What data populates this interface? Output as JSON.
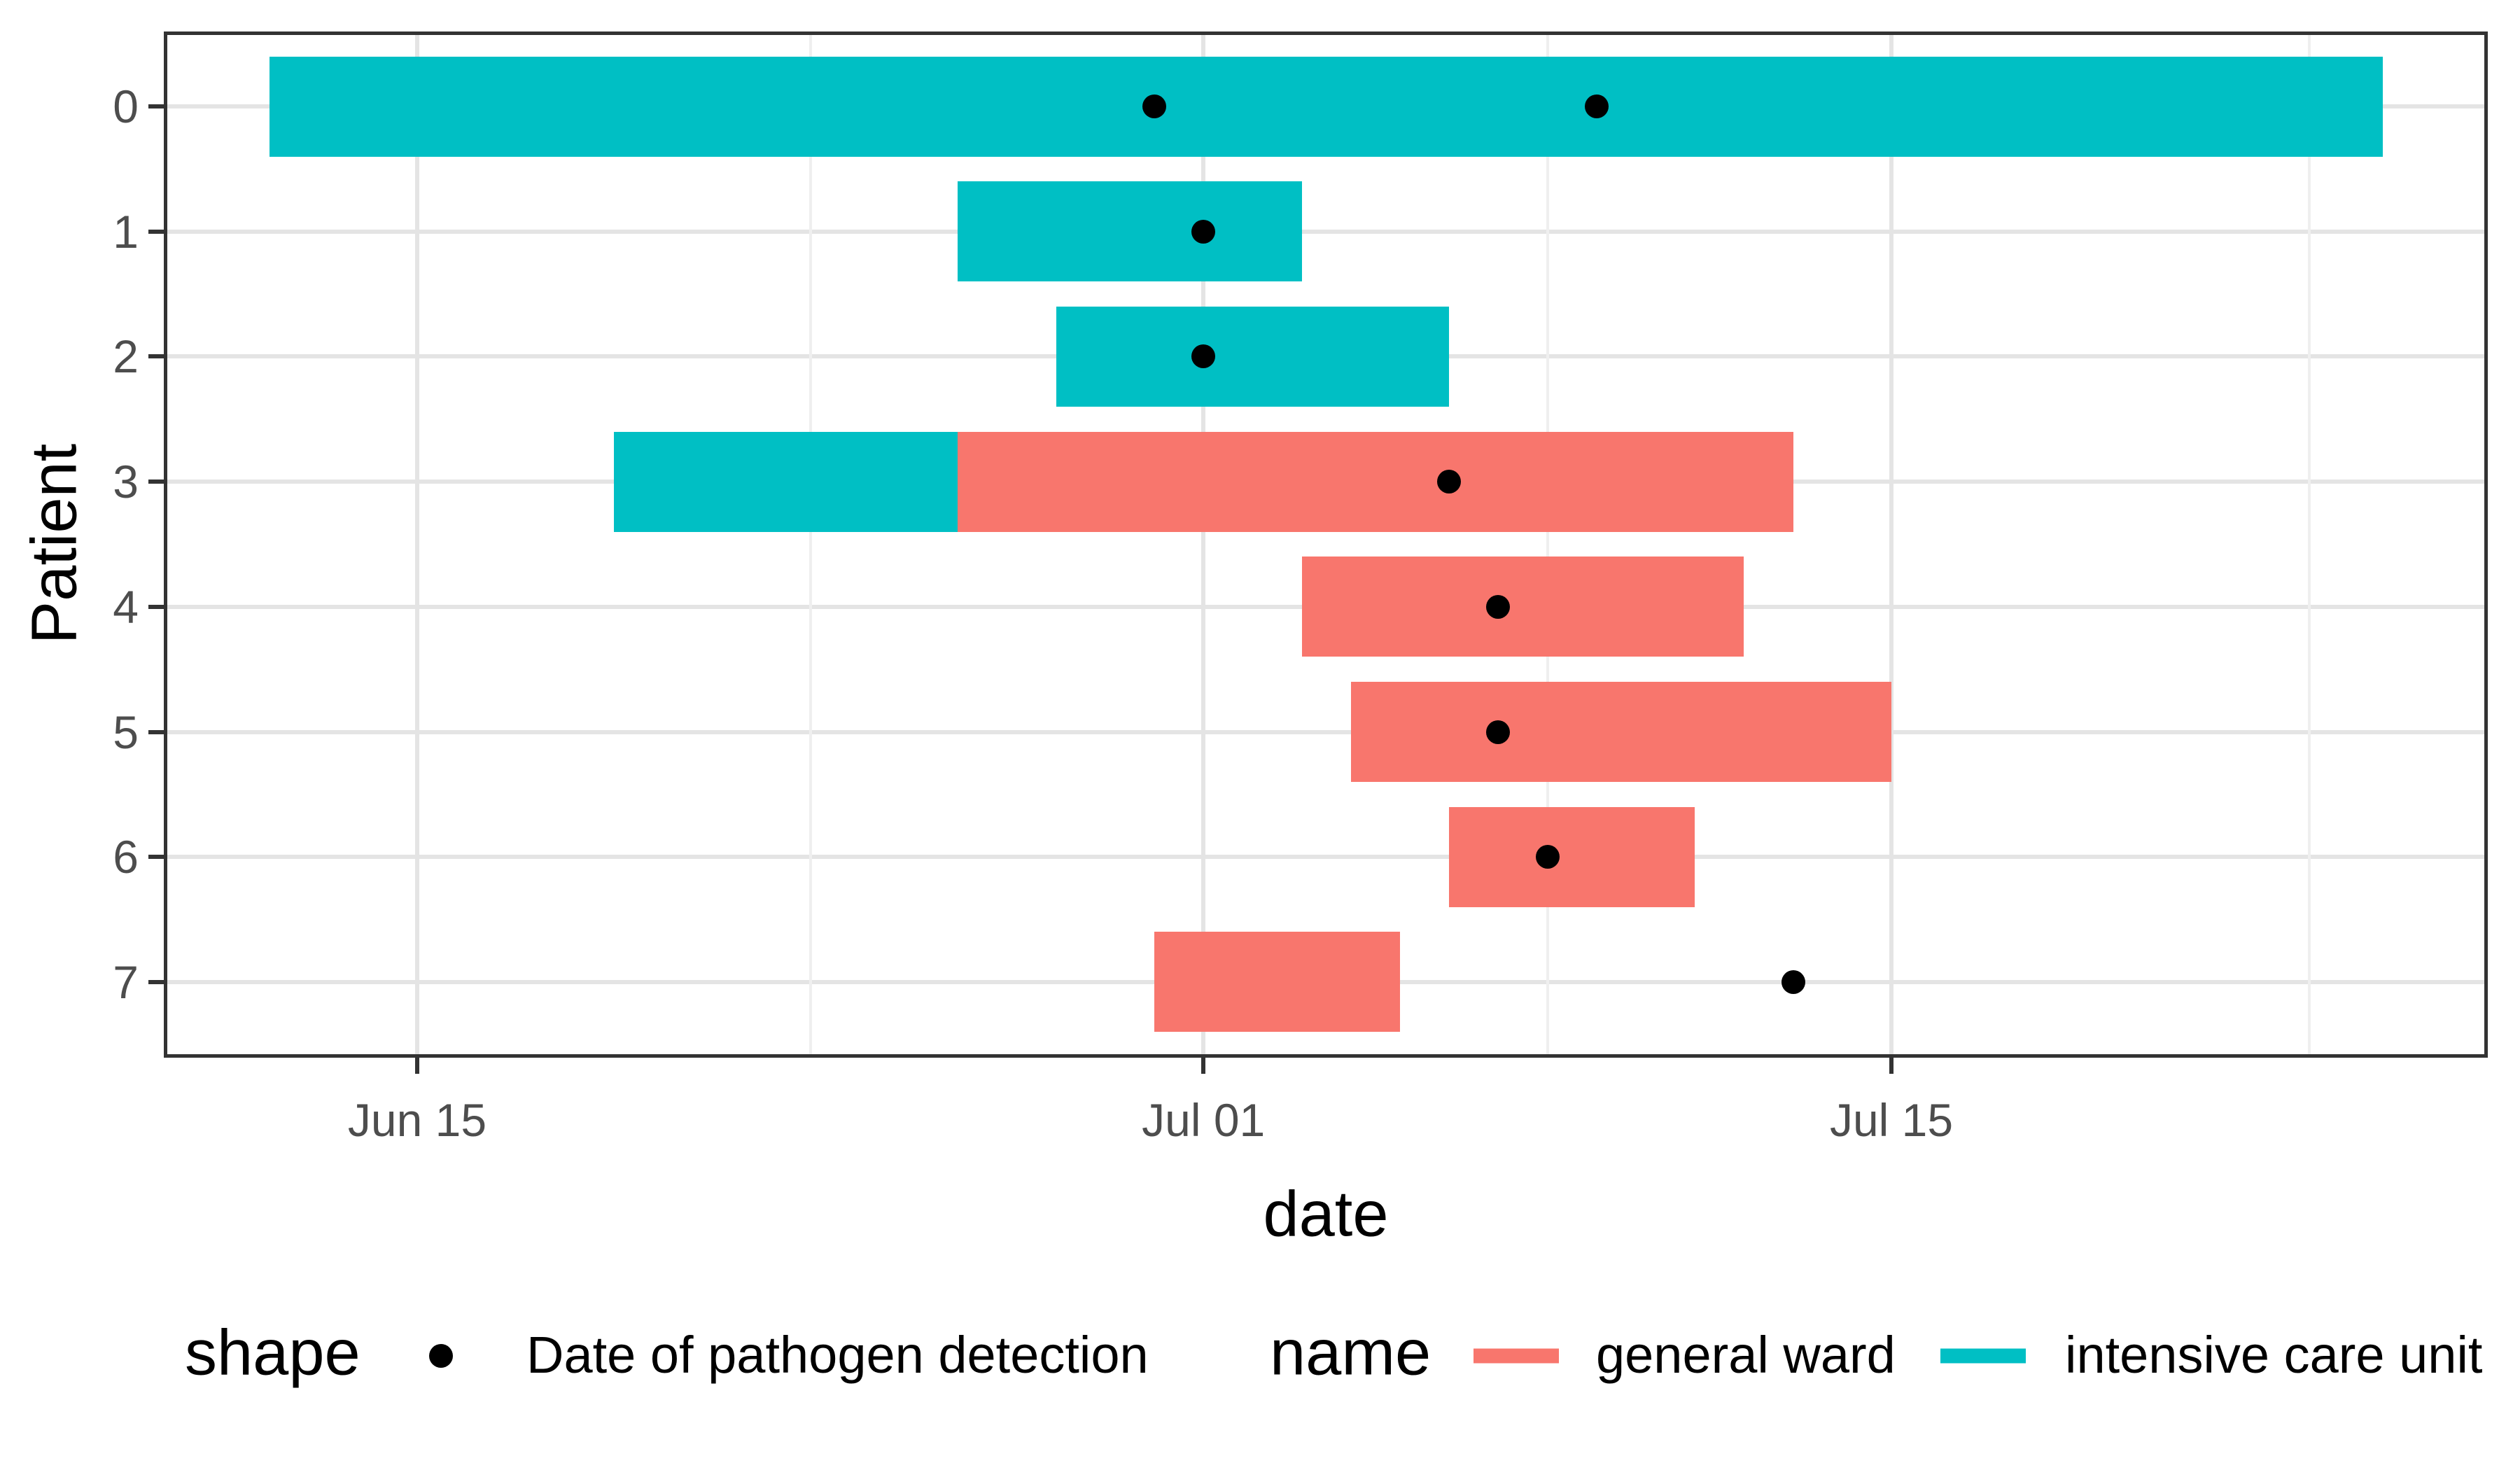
{
  "figure": {
    "x_axis": {
      "title": "date",
      "major_ticks": [
        {
          "label": "Jun 15",
          "day": 15
        },
        {
          "label": "Jul 01",
          "day": 31
        },
        {
          "label": "Jul 15",
          "day": 45
        }
      ],
      "minor_tick_days": [
        23,
        38,
        53.5
      ]
    },
    "y_axis": {
      "title": "Patient",
      "tick_labels": [
        "0",
        "1",
        "2",
        "3",
        "4",
        "5",
        "6",
        "7"
      ]
    },
    "legend": {
      "shape": {
        "title": "shape",
        "items": [
          {
            "label": "Date of pathogen detection",
            "marker": "point",
            "color": "#000000"
          }
        ]
      },
      "name": {
        "title": "name",
        "items": [
          {
            "label": "general ward",
            "color": "#F8766D"
          },
          {
            "label": "intensive care unit",
            "color": "#00BFC4"
          }
        ]
      }
    },
    "colors": {
      "general_ward": "#F8766D",
      "intensive_care_unit": "#00BFC4",
      "grid_major": "#e4e4e4",
      "grid_minor": "#efefef",
      "panel_border": "#333333",
      "tick_label": "#4d4d4d",
      "detection_marker": "#000000"
    }
  },
  "chart_data": {
    "type": "gantt",
    "xlabel": "date",
    "ylabel": "Patient",
    "x_tick_labels": [
      "Jun 15",
      "Jul 01",
      "Jul 15"
    ],
    "x_range_days_note": "x axis spans approx Jun 10 to Jul 27",
    "series_names": [
      "general ward",
      "intensive care unit"
    ],
    "patients": [
      {
        "patient": "0",
        "stays": [
          {
            "name": "intensive care unit",
            "start": "Jun 12",
            "end": "Jul 25"
          }
        ],
        "detections": [
          "Jun 30",
          "Jul 09"
        ]
      },
      {
        "patient": "1",
        "stays": [
          {
            "name": "intensive care unit",
            "start": "Jun 26",
            "end": "Jul 03"
          }
        ],
        "detections": [
          "Jul 01"
        ]
      },
      {
        "patient": "2",
        "stays": [
          {
            "name": "intensive care unit",
            "start": "Jun 28",
            "end": "Jul 06"
          }
        ],
        "detections": [
          "Jul 01"
        ]
      },
      {
        "patient": "3",
        "stays": [
          {
            "name": "intensive care unit",
            "start": "Jun 19",
            "end": "Jun 26"
          },
          {
            "name": "general ward",
            "start": "Jun 26",
            "end": "Jul 13"
          }
        ],
        "detections": [
          "Jul 06"
        ]
      },
      {
        "patient": "4",
        "stays": [
          {
            "name": "general ward",
            "start": "Jul 03",
            "end": "Jul 12"
          }
        ],
        "detections": [
          "Jul 07"
        ]
      },
      {
        "patient": "5",
        "stays": [
          {
            "name": "general ward",
            "start": "Jul 04",
            "end": "Jul 15"
          }
        ],
        "detections": [
          "Jul 07"
        ]
      },
      {
        "patient": "6",
        "stays": [
          {
            "name": "general ward",
            "start": "Jul 06",
            "end": "Jul 11"
          }
        ],
        "detections": [
          "Jul 08"
        ]
      },
      {
        "patient": "7",
        "stays": [
          {
            "name": "general ward",
            "start": "Jun 30",
            "end": "Jul 05"
          }
        ],
        "detections": [
          "Jul 13"
        ]
      }
    ]
  }
}
